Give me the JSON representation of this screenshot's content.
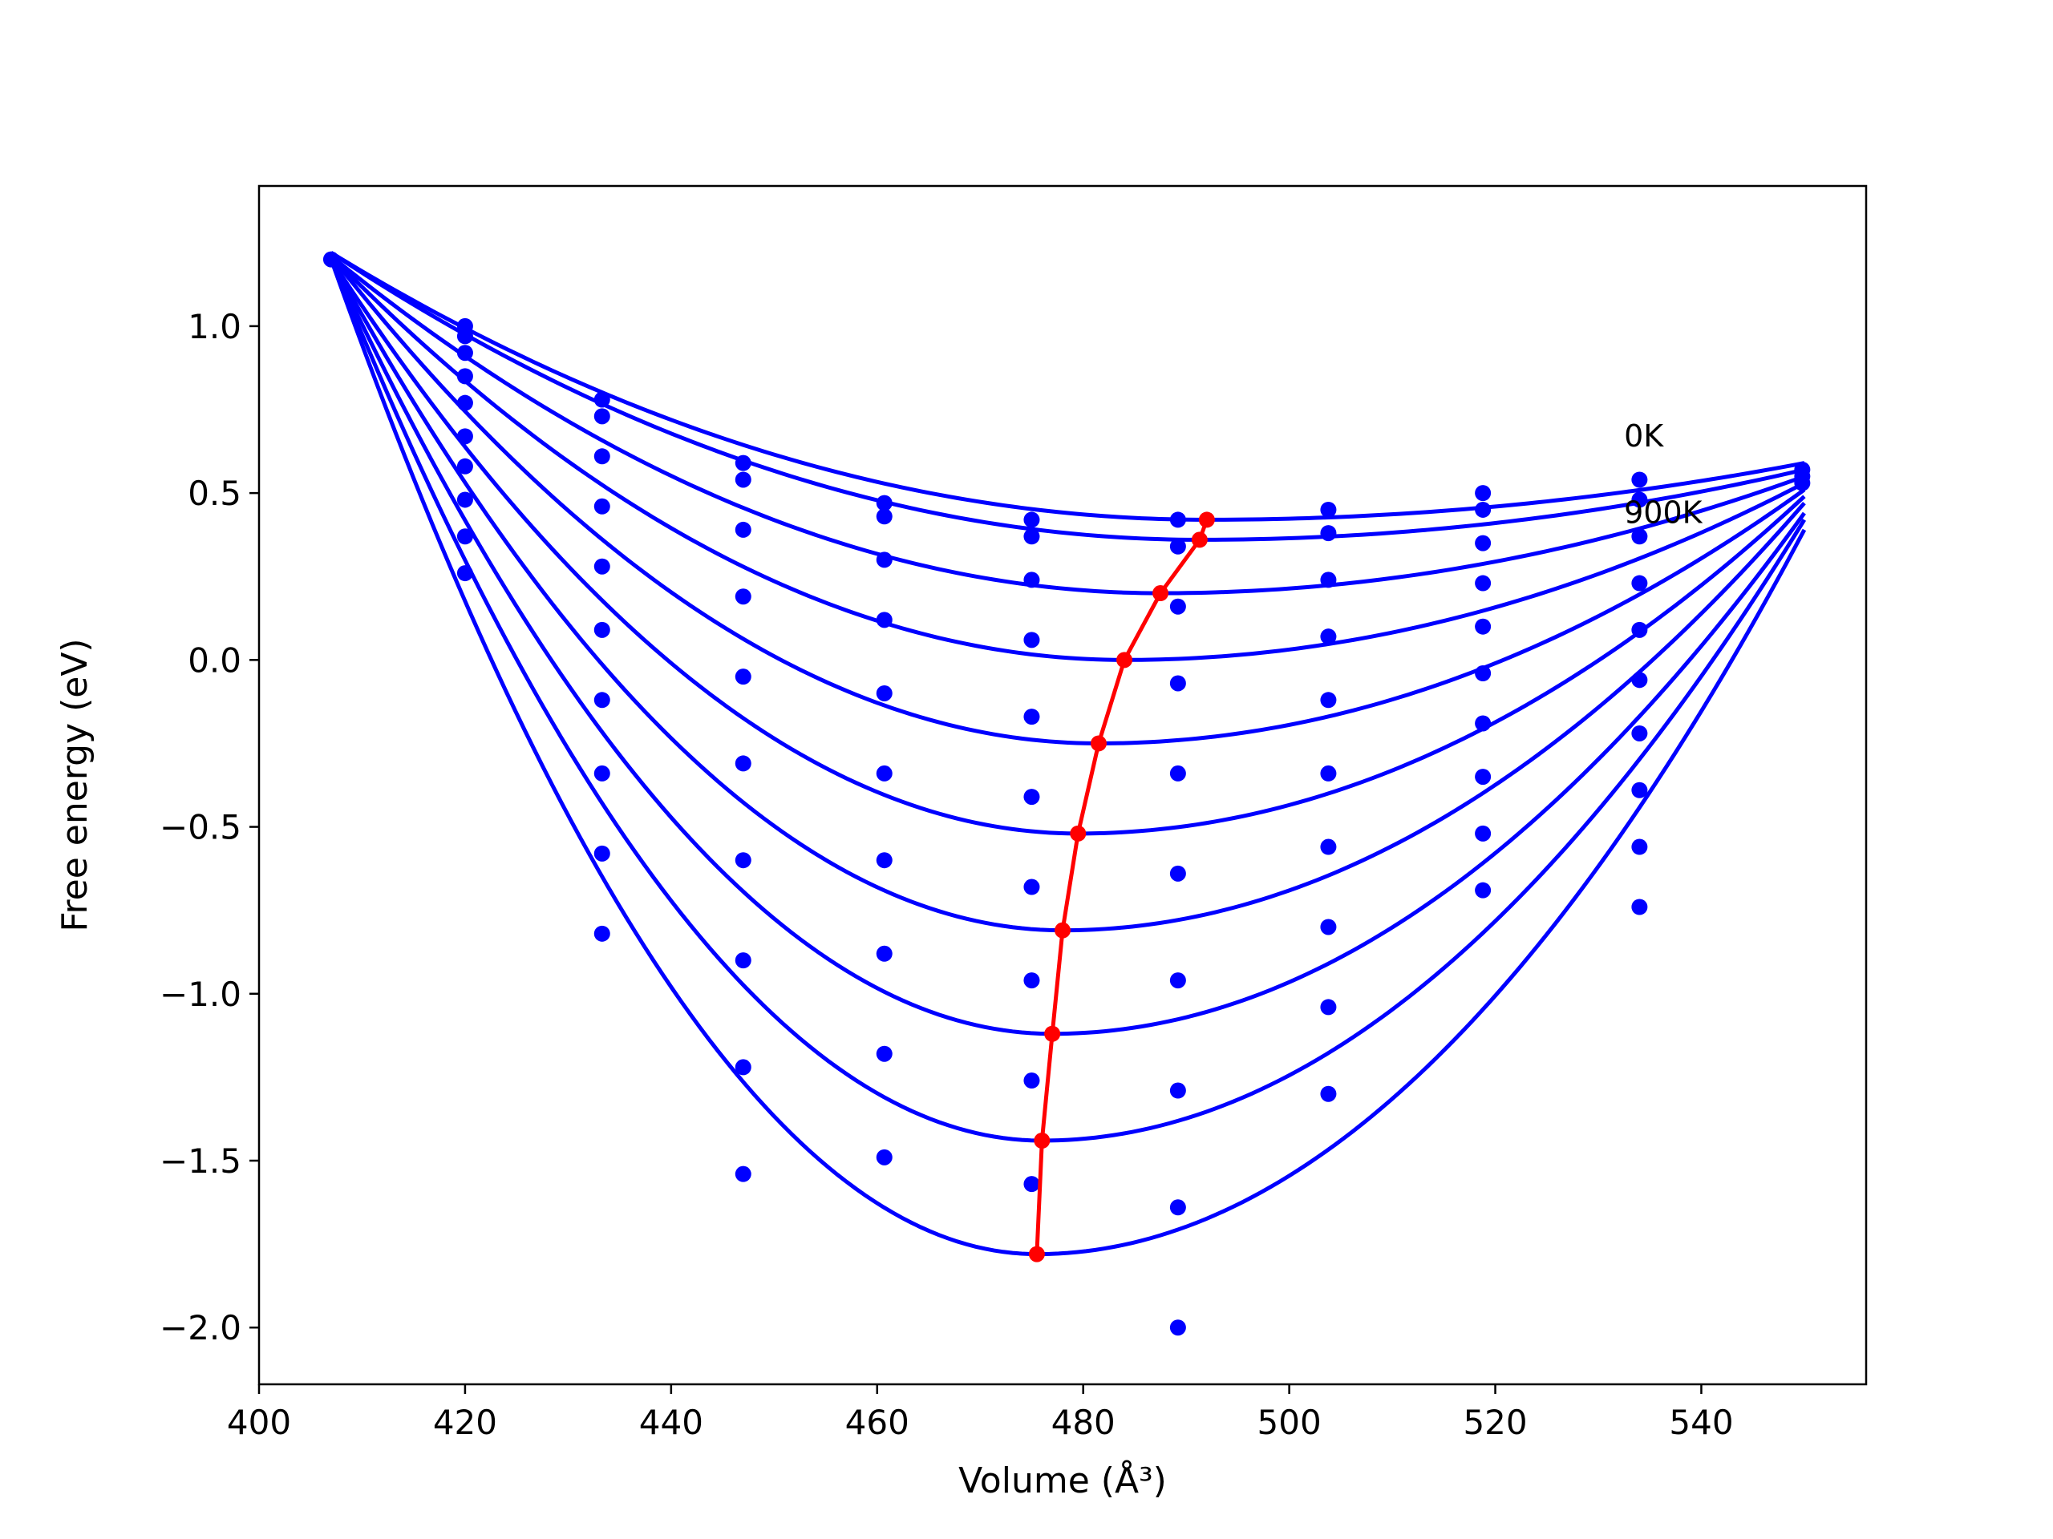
{
  "chart_data": {
    "type": "line",
    "title": "",
    "xlabel": "Volume",
    "xlabel_unit": "(Å³)",
    "ylabel": "Free energy (eV)",
    "xlim": [
      400,
      556
    ],
    "ylim": [
      -2.17,
      1.42
    ],
    "xticks": [
      400,
      420,
      440,
      460,
      480,
      500,
      520,
      540
    ],
    "yticks": [
      -2.0,
      -1.5,
      -1.0,
      -0.5,
      0.0,
      0.5,
      1.0
    ],
    "ytick_labels": [
      "−2.0",
      "−1.5",
      "−1.0",
      "−0.5",
      "0.0",
      "0.5",
      "1.0"
    ],
    "grid": false,
    "fit_range": [
      407,
      550
    ],
    "series_color": "#0000ff",
    "equilibrium_color": "#ff0000",
    "curves": [
      {
        "v0": 492.0,
        "e0": 0.42,
        "e_left": 1.22,
        "e_right": 0.59
      },
      {
        "v0": 491.3,
        "e0": 0.36,
        "e_left": 1.22,
        "e_right": 0.57
      },
      {
        "v0": 487.5,
        "e0": 0.2,
        "e_left": 1.21,
        "e_right": 0.55
      },
      {
        "v0": 484.0,
        "e0": 0.0,
        "e_left": 1.21,
        "e_right": 0.53
      },
      {
        "v0": 481.5,
        "e0": -0.25,
        "e_left": 1.21,
        "e_right": 0.51
      },
      {
        "v0": 479.5,
        "e0": -0.52,
        "e_left": 1.2,
        "e_right": 0.49
      },
      {
        "v0": 478.0,
        "e0": -0.81,
        "e_left": 1.2,
        "e_right": 0.47
      },
      {
        "v0": 477.0,
        "e0": -1.12,
        "e_left": 1.2,
        "e_right": 0.44
      },
      {
        "v0": 476.0,
        "e0": -1.44,
        "e_left": 1.2,
        "e_right": 0.42
      },
      {
        "v0": 475.5,
        "e0": -1.78,
        "e_left": 1.2,
        "e_right": 0.39
      }
    ],
    "data_points": [
      [
        407,
        1.2
      ],
      [
        420,
        1.0
      ],
      [
        420,
        0.97
      ],
      [
        420,
        0.92
      ],
      [
        420,
        0.85
      ],
      [
        420,
        0.77
      ],
      [
        420,
        0.67
      ],
      [
        420,
        0.58
      ],
      [
        420,
        0.48
      ],
      [
        420,
        0.37
      ],
      [
        420,
        0.26
      ],
      [
        433.3,
        0.78
      ],
      [
        433.3,
        0.73
      ],
      [
        433.3,
        0.61
      ],
      [
        433.3,
        0.46
      ],
      [
        433.3,
        0.28
      ],
      [
        433.3,
        0.09
      ],
      [
        433.3,
        -0.12
      ],
      [
        433.3,
        -0.34
      ],
      [
        433.3,
        -0.58
      ],
      [
        433.3,
        -0.82
      ],
      [
        447,
        0.59
      ],
      [
        447,
        0.54
      ],
      [
        447,
        0.39
      ],
      [
        447,
        0.19
      ],
      [
        447,
        -0.05
      ],
      [
        447,
        -0.31
      ],
      [
        447,
        -0.6
      ],
      [
        447,
        -0.9
      ],
      [
        447,
        -1.22
      ],
      [
        447,
        -1.54
      ],
      [
        460.7,
        0.47
      ],
      [
        460.7,
        0.43
      ],
      [
        460.7,
        0.3
      ],
      [
        460.7,
        0.12
      ],
      [
        460.7,
        -0.1
      ],
      [
        460.7,
        -0.34
      ],
      [
        460.7,
        -0.6
      ],
      [
        460.7,
        -0.88
      ],
      [
        460.7,
        -1.18
      ],
      [
        460.7,
        -1.49
      ],
      [
        475,
        0.42
      ],
      [
        475,
        0.37
      ],
      [
        475,
        0.24
      ],
      [
        475,
        0.06
      ],
      [
        475,
        -0.17
      ],
      [
        475,
        -0.41
      ],
      [
        475,
        -0.68
      ],
      [
        475,
        -0.96
      ],
      [
        475,
        -1.26
      ],
      [
        475,
        -1.57
      ],
      [
        489.2,
        0.42
      ],
      [
        489.2,
        0.34
      ],
      [
        489.2,
        0.16
      ],
      [
        489.2,
        -0.07
      ],
      [
        489.2,
        -0.34
      ],
      [
        489.2,
        -0.64
      ],
      [
        489.2,
        -0.96
      ],
      [
        489.2,
        -1.29
      ],
      [
        489.2,
        -1.64
      ],
      [
        489.2,
        -2.0
      ],
      [
        503.8,
        0.45
      ],
      [
        503.8,
        0.38
      ],
      [
        503.8,
        0.24
      ],
      [
        503.8,
        0.07
      ],
      [
        503.8,
        -0.12
      ],
      [
        503.8,
        -0.34
      ],
      [
        503.8,
        -0.56
      ],
      [
        503.8,
        -0.8
      ],
      [
        503.8,
        -1.04
      ],
      [
        503.8,
        -1.3
      ],
      [
        518.8,
        0.5
      ],
      [
        518.8,
        0.45
      ],
      [
        518.8,
        0.35
      ],
      [
        518.8,
        0.23
      ],
      [
        518.8,
        0.1
      ],
      [
        518.8,
        -0.04
      ],
      [
        518.8,
        -0.19
      ],
      [
        518.8,
        -0.35
      ],
      [
        518.8,
        -0.52
      ],
      [
        518.8,
        -0.69
      ],
      [
        534,
        0.54
      ],
      [
        534,
        0.48
      ],
      [
        534,
        0.37
      ],
      [
        534,
        0.23
      ],
      [
        534,
        0.09
      ],
      [
        534,
        -0.06
      ],
      [
        534,
        -0.22
      ],
      [
        534,
        -0.39
      ],
      [
        534,
        -0.56
      ],
      [
        534,
        -0.74
      ],
      [
        549.8,
        0.57
      ],
      [
        549.8,
        0.55
      ],
      [
        549.8,
        0.53
      ]
    ],
    "equilibrium_line": {
      "x": [
        492.0,
        491.3,
        487.5,
        484.0,
        481.5,
        479.5,
        478.0,
        477.0,
        476.0,
        475.5
      ],
      "y": [
        0.42,
        0.36,
        0.2,
        0.0,
        -0.25,
        -0.52,
        -0.81,
        -1.12,
        -1.44,
        -1.78
      ]
    },
    "annotations": [
      {
        "text": "0K",
        "x": 532.5,
        "y": 0.64
      },
      {
        "text": "900K",
        "x": 532.5,
        "y": 0.41
      }
    ]
  }
}
